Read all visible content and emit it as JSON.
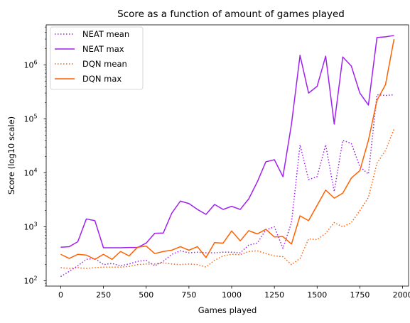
{
  "chart_data": {
    "type": "line",
    "title": "Score as a function of amount of games played",
    "xlabel": "Games played",
    "ylabel": "Score (log10 scale)",
    "yscale": "log10",
    "xlim": [
      -85,
      2035
    ],
    "ylim": [
      80,
      5500000
    ],
    "xticks": [
      0,
      250,
      500,
      750,
      1000,
      1250,
      1500,
      1750,
      2000
    ],
    "xtick_labels": [
      "0",
      "250",
      "500",
      "750",
      "1000",
      "1250",
      "1500",
      "1750",
      "2000"
    ],
    "yticks": [
      100,
      1000,
      10000,
      100000,
      1000000
    ],
    "ytick_labels": [
      {
        "base": "10",
        "exp": "2"
      },
      {
        "base": "10",
        "exp": "3"
      },
      {
        "base": "10",
        "exp": "4"
      },
      {
        "base": "10",
        "exp": "5"
      },
      {
        "base": "10",
        "exp": "6"
      }
    ],
    "grid": false,
    "legend_position": "top-left",
    "x": [
      0,
      50,
      100,
      150,
      200,
      250,
      300,
      350,
      400,
      450,
      500,
      550,
      600,
      650,
      700,
      750,
      800,
      850,
      900,
      950,
      1000,
      1050,
      1100,
      1150,
      1200,
      1250,
      1300,
      1350,
      1400,
      1450,
      1500,
      1550,
      1600,
      1650,
      1700,
      1750,
      1800,
      1850,
      1900,
      1950
    ],
    "series": [
      {
        "name": "NEAT mean",
        "color": "#a020f0",
        "dash": "dotted",
        "values": [
          120,
          150,
          190,
          250,
          260,
          200,
          210,
          190,
          205,
          230,
          240,
          190,
          230,
          310,
          360,
          330,
          340,
          330,
          330,
          340,
          340,
          330,
          460,
          500,
          880,
          1000,
          400,
          1200,
          33000,
          7500,
          8500,
          33000,
          4500,
          40000,
          35000,
          13000,
          9500,
          280000,
          270000,
          280000
        ]
      },
      {
        "name": "NEAT max",
        "color": "#a020f0",
        "dash": "solid",
        "values": [
          420,
          430,
          530,
          1400,
          1300,
          410,
          410,
          410,
          415,
          415,
          500,
          760,
          770,
          1800,
          3000,
          2700,
          2100,
          1700,
          2600,
          2100,
          2400,
          2100,
          3300,
          6800,
          16000,
          17500,
          8500,
          80000,
          1500000,
          300000,
          400000,
          1450000,
          80000,
          1400000,
          950000,
          300000,
          180000,
          3200000,
          3300000,
          3500000
        ]
      },
      {
        "name": "DQN mean",
        "color": "#ff6000",
        "dash": "dotted",
        "values": [
          175,
          170,
          175,
          170,
          175,
          180,
          180,
          180,
          185,
          200,
          205,
          205,
          215,
          205,
          200,
          205,
          200,
          180,
          240,
          290,
          310,
          305,
          350,
          360,
          320,
          290,
          280,
          200,
          260,
          600,
          580,
          760,
          1200,
          1000,
          1200,
          2000,
          3500,
          15000,
          26000,
          65000
        ]
      },
      {
        "name": "DQN max",
        "color": "#ff6000",
        "dash": "solid",
        "values": [
          310,
          260,
          310,
          300,
          250,
          310,
          250,
          350,
          290,
          420,
          440,
          320,
          350,
          370,
          430,
          370,
          430,
          270,
          510,
          500,
          840,
          550,
          850,
          740,
          900,
          650,
          660,
          480,
          1600,
          1300,
          2500,
          4800,
          3400,
          4200,
          8000,
          11000,
          40000,
          220000,
          430000,
          3000000
        ]
      }
    ]
  }
}
